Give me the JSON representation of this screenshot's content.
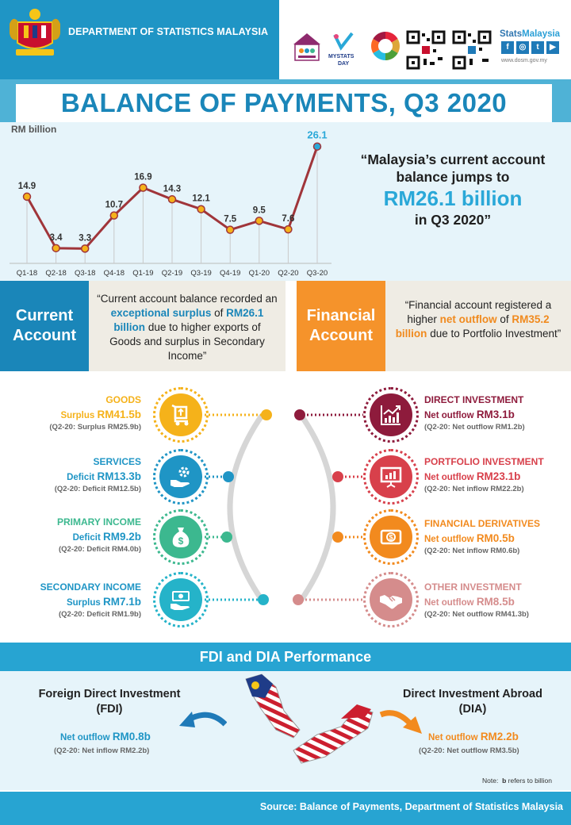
{
  "header": {
    "department": "DEPARTMENT OF STATISTICS MALAYSIA",
    "brand_prefix": "Stats",
    "brand_suffix": "Malaysia",
    "website": "www.dosm.gov.my",
    "mystats_logo": "MYSTATS",
    "mystats_day": "DAY",
    "social_icons": [
      "facebook-icon",
      "instagram-icon",
      "twitter-icon",
      "youtube-icon"
    ],
    "colors": {
      "band": "#1f95c5",
      "title": "#1a86b9"
    }
  },
  "title": "BALANCE OF PAYMENTS, Q3 2020",
  "chart_data": {
    "type": "line",
    "ylabel": "RM  billion",
    "categories": [
      "Q1-18",
      "Q2-18",
      "Q3-18",
      "Q4-18",
      "Q1-19",
      "Q2-19",
      "Q3-19",
      "Q4-19",
      "Q1-20",
      "Q2-20",
      "Q3-20"
    ],
    "values": [
      14.9,
      3.4,
      3.3,
      10.7,
      16.9,
      14.3,
      12.1,
      7.5,
      9.5,
      7.6,
      26.1
    ],
    "data_labels": [
      "14.9",
      "3.4",
      "3.3",
      "10.7",
      "16.9",
      "14.3",
      "12.1",
      "7.5",
      "9.5",
      "7.6",
      "26.1"
    ],
    "ylim": [
      0,
      28
    ],
    "grid": false,
    "line_color": "#a0353a",
    "marker_color": "#f5b21a",
    "highlight_color": "#2aa8d8"
  },
  "quote": {
    "line1": "“Malaysia’s current account balance jumps to",
    "highlight": "RM26.1 billion",
    "line3": "in Q3 2020”"
  },
  "current_account": {
    "label_1": "Current",
    "label_2": "Account",
    "text_1": "“Current account balance recorded an",
    "highlight_1": "exceptional surplus",
    "text_2": "of",
    "highlight_2": "RM26.1 billion",
    "text_3": "due to higher exports of Goods and surplus in Secondary Income”",
    "color": "#1a86b9"
  },
  "financial_account": {
    "label_1": "Financial",
    "label_2": "Account",
    "text_1": "“Financial account registered a higher",
    "highlight_1": "net outflow",
    "text_2": "of",
    "highlight_2": "RM35.2 billion",
    "text_3": "due to Portfolio Investment”",
    "color": "#f5932b"
  },
  "current_items": [
    {
      "name": "GOODS",
      "status": "Surplus",
      "value": "RM41.5b",
      "prev": "(Q2-20: Surplus RM25.9b)",
      "color": "#f5b21a",
      "icon": "trolley-icon"
    },
    {
      "name": "SERVICES",
      "status": "Deficit",
      "value": "RM13.3b",
      "prev": "(Q2-20: Deficit RM12.5b)",
      "color": "#1f95c5",
      "icon": "hand-gear-icon"
    },
    {
      "name": "PRIMARY INCOME",
      "status": "Deficit",
      "value": "RM9.2b",
      "prev": "(Q2-20: Deficit RM4.0b)",
      "color": "#3cb88f",
      "icon": "money-bag-icon"
    },
    {
      "name": "SECONDARY  INCOME",
      "status": "Surplus",
      "value": "RM7.1b",
      "prev": "(Q2-20: Deficit RM1.9b)",
      "color": "#25b3c9",
      "icon": "cash-hand-icon"
    }
  ],
  "financial_items": [
    {
      "name": "DIRECT INVESTMENT",
      "status": "Net outflow",
      "value": "RM3.1b",
      "prev": "(Q2-20: Net outflow RM1.2b)",
      "color": "#8e1b3c",
      "icon": "growth-chart-icon"
    },
    {
      "name": "PORTFOLIO INVESTMENT",
      "status": "Net outflow",
      "value": "RM23.1b",
      "prev": "(Q2-20: Net inflow RM22.2b)",
      "color": "#d8404b",
      "icon": "presentation-icon"
    },
    {
      "name": "FINANCIAL DERIVATIVES",
      "status": "Net outflow",
      "value": "RM0.5b",
      "prev": "(Q2-20: Net inflow RM0.6b)",
      "color": "#f28a1e",
      "icon": "banknote-icon"
    },
    {
      "name": "OTHER INVESTMENT",
      "status": "Net outflow",
      "value": "RM8.5b",
      "prev": "(Q2-20: Net outflow RM41.3b)",
      "color": "#d58c8c",
      "icon": "handshake-icon"
    }
  ],
  "fdi_section": {
    "title": "FDI and DIA Performance",
    "fdi": {
      "title_1": "Foreign Direct Investment",
      "title_2": "(FDI)",
      "status": "Net outflow",
      "value": "RM0.8b",
      "prev": "(Q2-20: Net inflow RM2.2b)",
      "color": "#1f95c5"
    },
    "dia": {
      "title_1": "Direct Investment Abroad",
      "title_2": "(DIA)",
      "status": "Net outflow",
      "value": "RM2.2b",
      "prev": "(Q2-20: Net outflow RM3.5b)",
      "color": "#f28a1e"
    },
    "note_prefix": "Note:",
    "note_key": "b",
    "note_text": "refers to billion"
  },
  "source": "Source: Balance of Payments, Department of Statistics Malaysia"
}
